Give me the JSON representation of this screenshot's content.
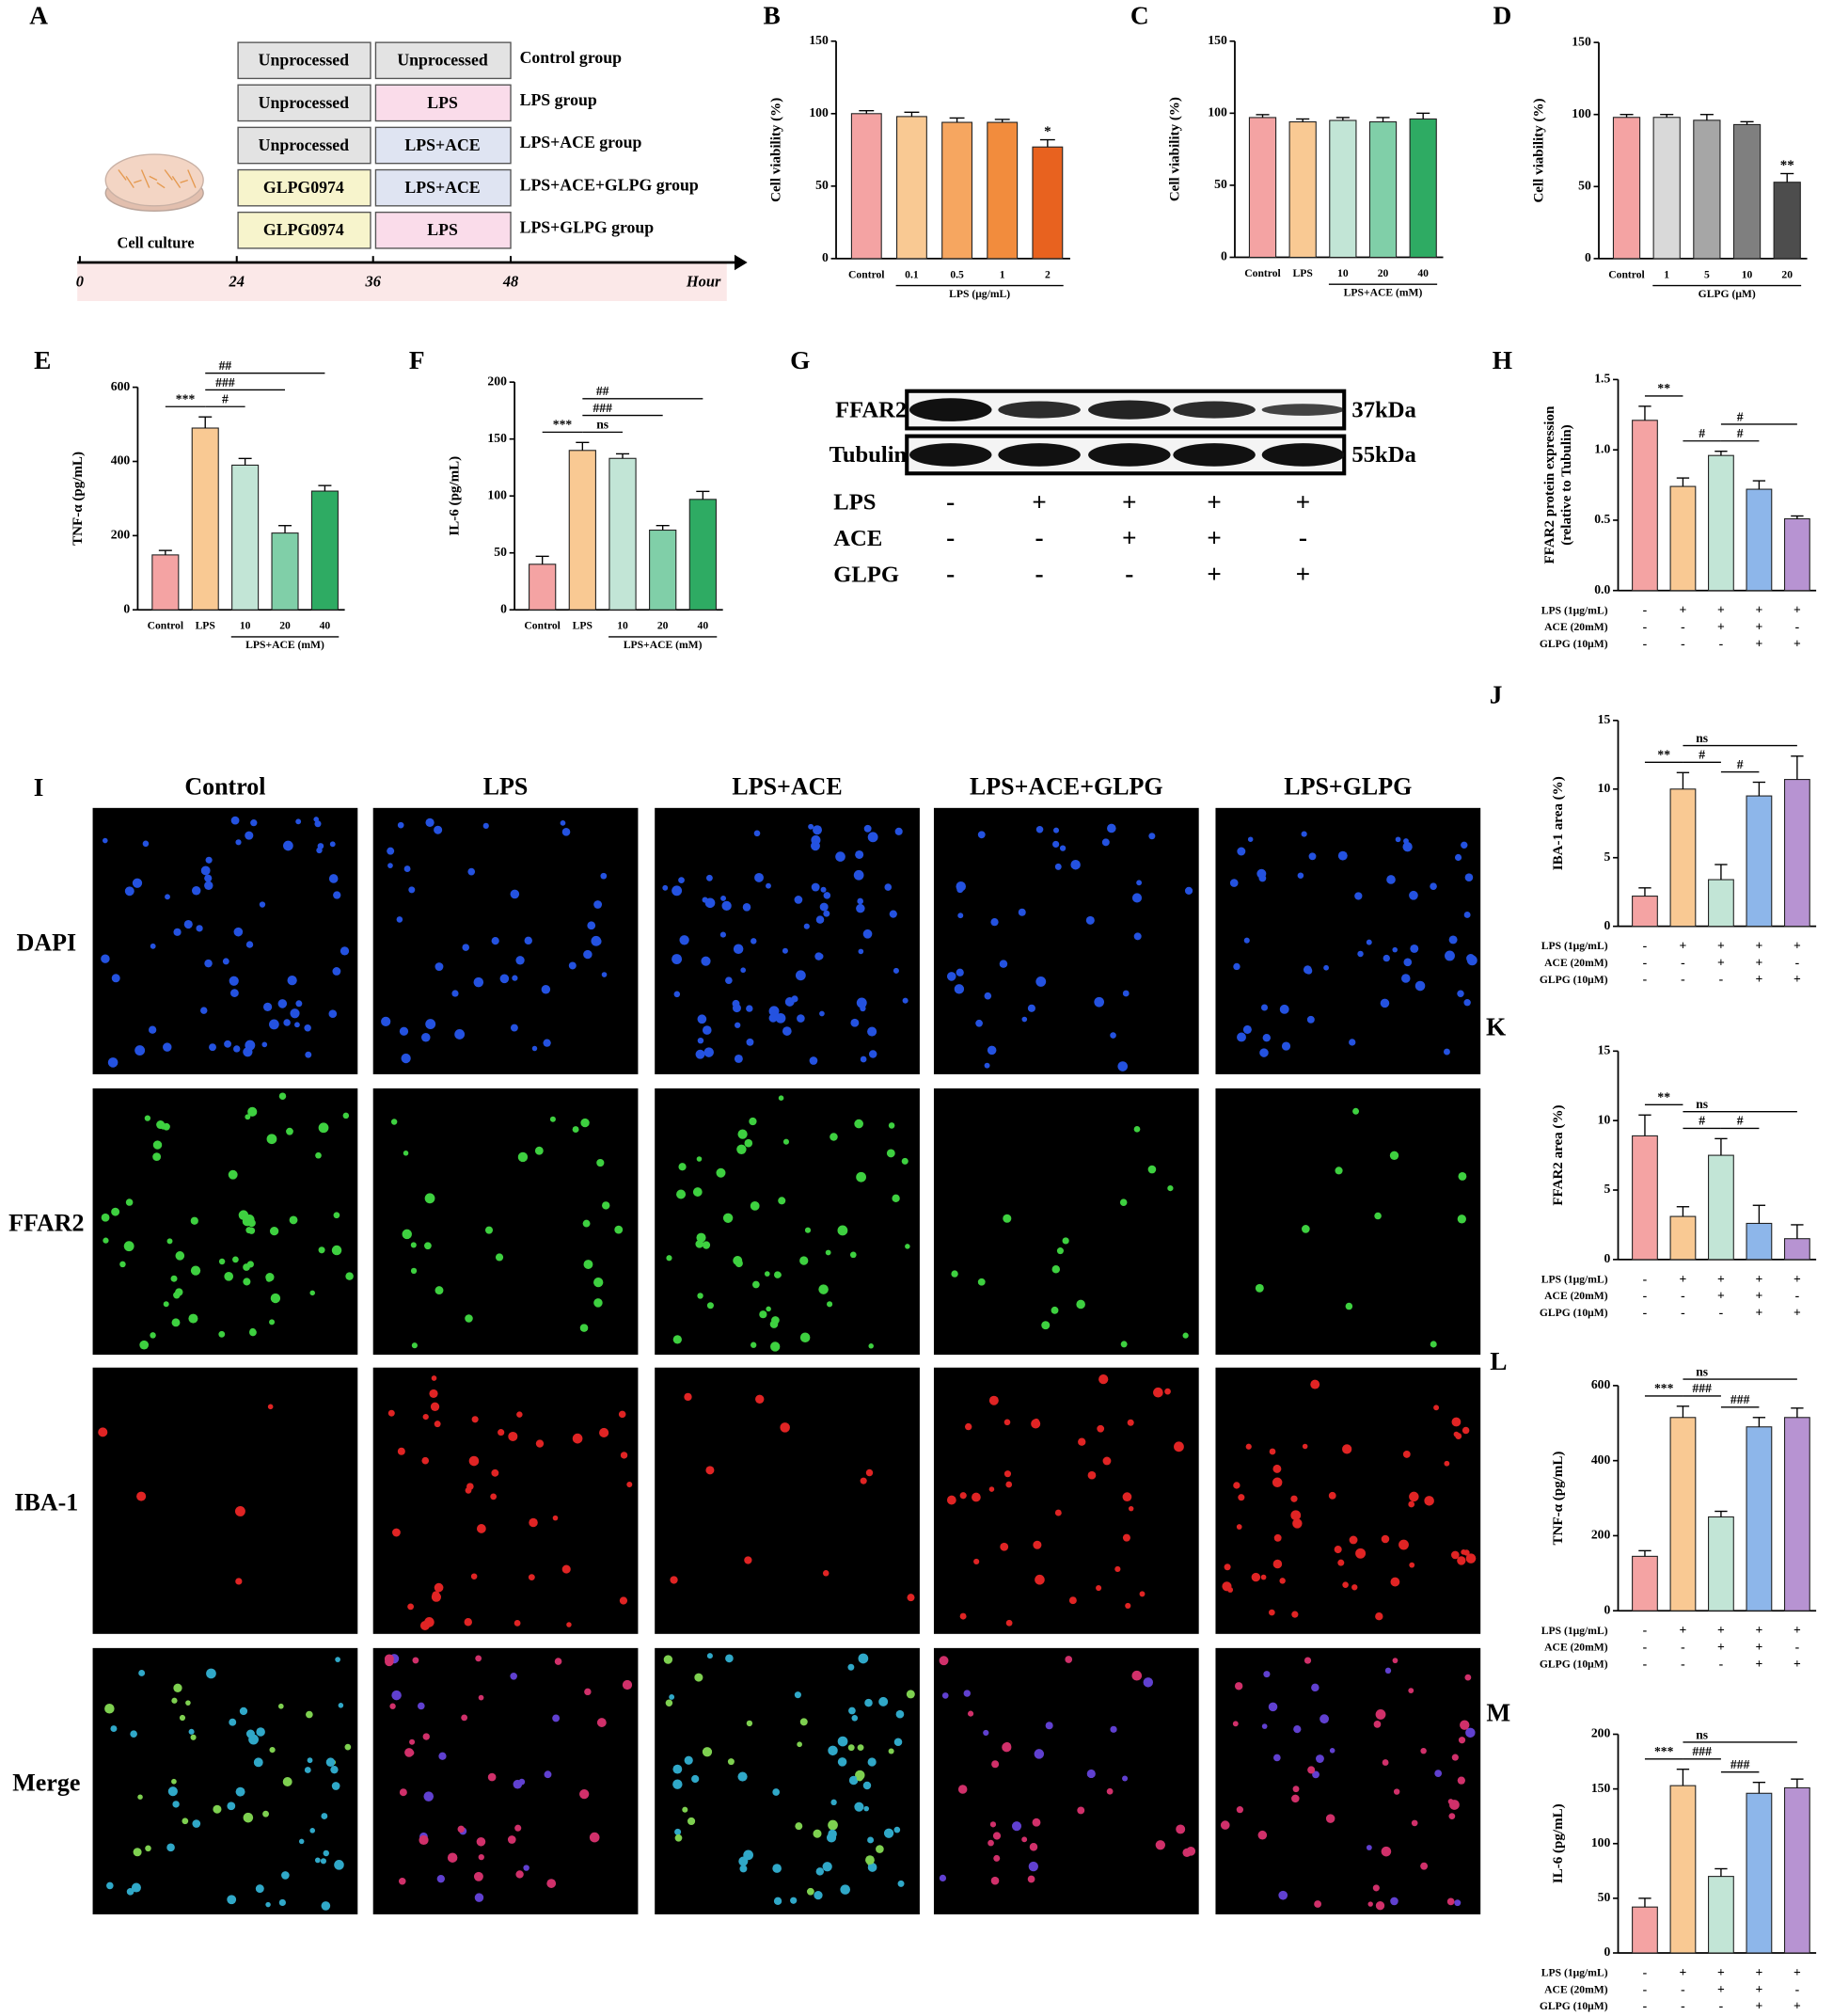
{
  "panel_a": {
    "label": "A",
    "rows": [
      {
        "pre": "Unprocessed",
        "treatment": "Unprocessed",
        "group": "Control group"
      },
      {
        "pre": "Unprocessed",
        "treatment": "LPS",
        "group": "LPS group"
      },
      {
        "pre": "Unprocessed",
        "treatment": "LPS+ACE",
        "group": "LPS+ACE group"
      },
      {
        "pre": "GLPG0974",
        "treatment": "LPS+ACE",
        "group": "LPS+ACE+GLPG group"
      },
      {
        "pre": "GLPG0974",
        "treatment": "LPS",
        "group": "LPS+GLPG group"
      }
    ],
    "culture": "Cell culture",
    "timeline": [
      "0",
      "24",
      "36",
      "48"
    ],
    "unit": "Hour"
  },
  "panel_g": {
    "label": "G",
    "blots": [
      {
        "name": "FFAR2",
        "size": "37kDa"
      },
      {
        "name": "Tubulin",
        "size": "55kDa"
      }
    ],
    "conditions": [
      {
        "name": "LPS",
        "signs": [
          "-",
          "+",
          "+",
          "+",
          "+"
        ]
      },
      {
        "name": "ACE",
        "signs": [
          "-",
          "-",
          "+",
          "+",
          "-"
        ]
      },
      {
        "name": "GLPG",
        "signs": [
          "-",
          "-",
          "-",
          "+",
          "+"
        ]
      }
    ]
  },
  "panel_i": {
    "label": "I",
    "columns": [
      "Control",
      "LPS",
      "LPS+ACE",
      "LPS+ACE+GLPG",
      "LPS+GLPG"
    ],
    "rows": [
      "DAPI",
      "FFAR2",
      "IBA-1",
      "Merge"
    ]
  },
  "chart_data": [
    {
      "type": "bar",
      "label": "B",
      "ylabel": "Cell viability (%)",
      "ylim": [
        0,
        150
      ],
      "yticks": [
        0,
        50,
        100,
        150
      ],
      "categories": [
        "Control",
        "0.1",
        "0.5",
        "1",
        "2"
      ],
      "group": {
        "label": "LPS (μg/mL)",
        "categories": [
          1,
          4
        ]
      },
      "values": [
        100,
        98,
        94,
        94,
        77
      ],
      "errors": [
        2,
        3,
        3,
        2,
        5
      ],
      "colors": [
        "#f4a3a3",
        "#f9c993",
        "#f6a660",
        "#f28c3d",
        "#e8621f"
      ],
      "annotations": [
        {
          "text": "*",
          "categories": [
            4,
            4
          ]
        }
      ]
    },
    {
      "type": "bar",
      "label": "C",
      "ylabel": "Cell viability (%)",
      "ylim": [
        0,
        150
      ],
      "yticks": [
        0,
        50,
        100,
        150
      ],
      "categories": [
        "Control",
        "LPS",
        "10",
        "20",
        "40"
      ],
      "group": {
        "label": "LPS+ACE (mM)",
        "categories": [
          2,
          4
        ]
      },
      "values": [
        97,
        94,
        95,
        94,
        96
      ],
      "errors": [
        2,
        2,
        2,
        3,
        4
      ],
      "colors": [
        "#f4a3a3",
        "#f9c993",
        "#c2e5d6",
        "#80cfa8",
        "#2eab63"
      ],
      "annotations": []
    },
    {
      "type": "bar",
      "label": "D",
      "ylabel": "Cell viability (%)",
      "ylim": [
        0,
        150
      ],
      "yticks": [
        0,
        50,
        100,
        150
      ],
      "categories": [
        "Control",
        "1",
        "5",
        "10",
        "20"
      ],
      "group": {
        "label": "GLPG (μM)",
        "categories": [
          1,
          4
        ]
      },
      "values": [
        98,
        98,
        96,
        93,
        53
      ],
      "errors": [
        2,
        2,
        4,
        2,
        6
      ],
      "colors": [
        "#f4a3a3",
        "#d9d9d9",
        "#a6a6a6",
        "#7f7f7f",
        "#4d4d4d"
      ],
      "annotations": [
        {
          "text": "**",
          "categories": [
            4,
            4
          ]
        }
      ]
    },
    {
      "type": "bar",
      "label": "E",
      "ylabel": "TNF-α (pg/mL)",
      "ylim": [
        0,
        600
      ],
      "yticks": [
        0,
        200,
        400,
        600
      ],
      "categories": [
        "Control",
        "LPS",
        "10",
        "20",
        "40"
      ],
      "group": {
        "label": "LPS+ACE (mM)",
        "categories": [
          2,
          4
        ]
      },
      "values": [
        148,
        490,
        390,
        207,
        320
      ],
      "errors": [
        12,
        30,
        18,
        20,
        15
      ],
      "colors": [
        "#f4a3a3",
        "#f9c993",
        "#c2e5d6",
        "#80cfa8",
        "#2eab63"
      ],
      "annotations": [
        {
          "text": "***",
          "categories": [
            0,
            1
          ]
        },
        {
          "text": "#",
          "categories": [
            1,
            2
          ]
        },
        {
          "text": "###",
          "categories": [
            1,
            3
          ]
        },
        {
          "text": "##",
          "categories": [
            1,
            4
          ]
        }
      ]
    },
    {
      "type": "bar",
      "label": "F",
      "ylabel": "IL-6 (pg/mL)",
      "ylim": [
        0,
        200
      ],
      "yticks": [
        0,
        50,
        100,
        150,
        200
      ],
      "categories": [
        "Control",
        "LPS",
        "10",
        "20",
        "40"
      ],
      "group": {
        "label": "LPS+ACE (mM)",
        "categories": [
          2,
          4
        ]
      },
      "values": [
        40,
        140,
        133,
        70,
        97
      ],
      "errors": [
        7,
        7,
        4,
        4,
        7
      ],
      "colors": [
        "#f4a3a3",
        "#f9c993",
        "#c2e5d6",
        "#80cfa8",
        "#2eab63"
      ],
      "annotations": [
        {
          "text": "***",
          "categories": [
            0,
            1
          ]
        },
        {
          "text": "ns",
          "categories": [
            1,
            2
          ]
        },
        {
          "text": "###",
          "categories": [
            1,
            3
          ]
        },
        {
          "text": "##",
          "categories": [
            1,
            4
          ]
        }
      ]
    },
    {
      "type": "bar",
      "label": "H",
      "ylabel": [
        "FFAR2 protein expression",
        "(relative to Tubulin)"
      ],
      "ylim": [
        0,
        1.5
      ],
      "yticks": [
        {
          "value": 0,
          "label": "0.0"
        },
        0.5,
        {
          "value": 1,
          "label": "1.0"
        },
        1.5
      ],
      "conditions": [
        {
          "name": "LPS (1μg/mL)",
          "signs": [
            "-",
            "+",
            "+",
            "+",
            "+"
          ]
        },
        {
          "name": "ACE (20mM)",
          "signs": [
            "-",
            "-",
            "+",
            "+",
            "-"
          ]
        },
        {
          "name": "GLPG (10μM)",
          "signs": [
            "-",
            "-",
            "-",
            "+",
            "+"
          ]
        }
      ],
      "values": [
        1.21,
        0.74,
        0.96,
        0.72,
        0.51
      ],
      "errors": [
        0.1,
        0.06,
        0.03,
        0.06,
        0.02
      ],
      "colors": [
        "#f4a3a3",
        "#f9c993",
        "#c2e5d6",
        "#8db6ea",
        "#b793d2"
      ],
      "annotations": [
        {
          "text": "**",
          "categories": [
            0,
            1
          ]
        },
        {
          "text": "#",
          "categories": [
            1,
            2
          ]
        },
        {
          "text": "#",
          "categories": [
            2,
            3
          ]
        },
        {
          "text": "#",
          "categories": [
            2,
            4
          ]
        }
      ]
    },
    {
      "type": "bar",
      "label": "J",
      "ylabel": "IBA-1 area (%)",
      "ylim": [
        0,
        15
      ],
      "yticks": [
        0,
        5,
        10,
        15
      ],
      "conditions": [
        {
          "name": "LPS (1μg/mL)",
          "signs": [
            "-",
            "+",
            "+",
            "+",
            "+"
          ]
        },
        {
          "name": "ACE (20mM)",
          "signs": [
            "-",
            "-",
            "+",
            "+",
            "-"
          ]
        },
        {
          "name": "GLPG (10μM)",
          "signs": [
            "-",
            "-",
            "-",
            "+",
            "+"
          ]
        }
      ],
      "values": [
        2.2,
        10,
        3.4,
        9.5,
        10.7
      ],
      "errors": [
        0.6,
        1.2,
        1.1,
        1,
        1.7
      ],
      "colors": [
        "#f4a3a3",
        "#f9c993",
        "#c2e5d6",
        "#8db6ea",
        "#b793d2"
      ],
      "annotations": [
        {
          "text": "**",
          "categories": [
            0,
            1
          ]
        },
        {
          "text": "#",
          "categories": [
            1,
            2
          ]
        },
        {
          "text": "#",
          "categories": [
            2,
            3
          ]
        },
        {
          "text": "ns",
          "categories": [
            1,
            4
          ]
        }
      ]
    },
    {
      "type": "bar",
      "label": "K",
      "ylabel": "FFAR2 area (%)",
      "ylim": [
        0,
        15
      ],
      "yticks": [
        0,
        5,
        10,
        15
      ],
      "conditions": [
        {
          "name": "LPS (1μg/mL)",
          "signs": [
            "-",
            "+",
            "+",
            "+",
            "+"
          ]
        },
        {
          "name": "ACE (20mM)",
          "signs": [
            "-",
            "-",
            "+",
            "+",
            "-"
          ]
        },
        {
          "name": "GLPG (10μM)",
          "signs": [
            "-",
            "-",
            "-",
            "+",
            "+"
          ]
        }
      ],
      "values": [
        8.9,
        3.1,
        7.5,
        2.6,
        1.5
      ],
      "errors": [
        1.5,
        0.7,
        1.2,
        1.3,
        1
      ],
      "colors": [
        "#f4a3a3",
        "#f9c993",
        "#c2e5d6",
        "#8db6ea",
        "#b793d2"
      ],
      "annotations": [
        {
          "text": "**",
          "categories": [
            0,
            1
          ]
        },
        {
          "text": "#",
          "categories": [
            1,
            2
          ]
        },
        {
          "text": "#",
          "categories": [
            2,
            3
          ]
        },
        {
          "text": "ns",
          "categories": [
            1,
            4
          ]
        }
      ]
    },
    {
      "type": "bar",
      "label": "L",
      "ylabel": "TNF-α (pg/mL)",
      "ylim": [
        0,
        600
      ],
      "yticks": [
        0,
        200,
        400,
        600
      ],
      "conditions": [
        {
          "name": "LPS (1μg/mL)",
          "signs": [
            "-",
            "+",
            "+",
            "+",
            "+"
          ]
        },
        {
          "name": "ACE (20mM)",
          "signs": [
            "-",
            "-",
            "+",
            "+",
            "-"
          ]
        },
        {
          "name": "GLPG (10μM)",
          "signs": [
            "-",
            "-",
            "-",
            "+",
            "+"
          ]
        }
      ],
      "values": [
        145,
        515,
        250,
        490,
        515
      ],
      "errors": [
        15,
        30,
        15,
        25,
        25
      ],
      "colors": [
        "#f4a3a3",
        "#f9c993",
        "#c2e5d6",
        "#8db6ea",
        "#b793d2"
      ],
      "annotations": [
        {
          "text": "***",
          "categories": [
            0,
            1
          ]
        },
        {
          "text": "###",
          "categories": [
            1,
            2
          ]
        },
        {
          "text": "###",
          "categories": [
            2,
            3
          ]
        },
        {
          "text": "ns",
          "categories": [
            1,
            4
          ]
        }
      ]
    },
    {
      "type": "bar",
      "label": "M",
      "ylabel": "IL-6 (pg/mL)",
      "ylim": [
        0,
        200
      ],
      "yticks": [
        0,
        50,
        100,
        150,
        200
      ],
      "conditions": [
        {
          "name": "LPS (1μg/mL)",
          "signs": [
            "-",
            "+",
            "+",
            "+",
            "+"
          ]
        },
        {
          "name": "ACE (20mM)",
          "signs": [
            "-",
            "-",
            "+",
            "+",
            "-"
          ]
        },
        {
          "name": "GLPG (10μM)",
          "signs": [
            "-",
            "-",
            "-",
            "+",
            "+"
          ]
        }
      ],
      "values": [
        42,
        153,
        70,
        146,
        151
      ],
      "errors": [
        8,
        15,
        7,
        10,
        8
      ],
      "colors": [
        "#f4a3a3",
        "#f9c993",
        "#c2e5d6",
        "#8db6ea",
        "#b793d2"
      ],
      "annotations": [
        {
          "text": "***",
          "categories": [
            0,
            1
          ]
        },
        {
          "text": "###",
          "categories": [
            1,
            2
          ]
        },
        {
          "text": "###",
          "categories": [
            2,
            3
          ]
        },
        {
          "text": "ns",
          "categories": [
            1,
            4
          ]
        }
      ]
    }
  ]
}
